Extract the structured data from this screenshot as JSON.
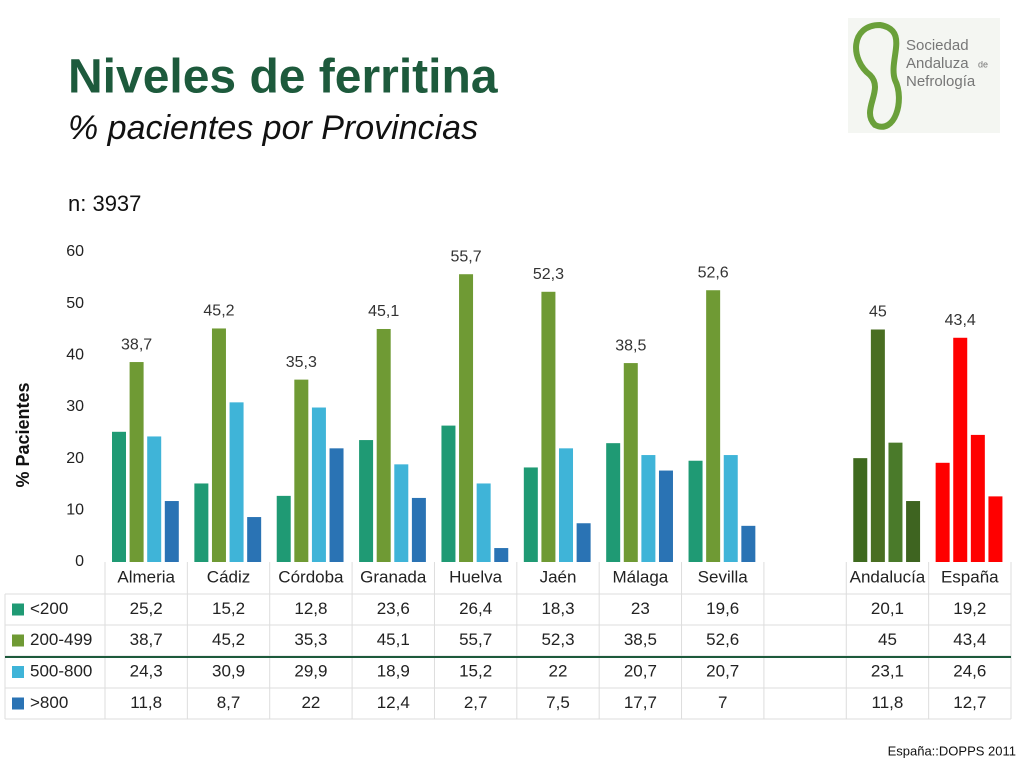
{
  "title": "Niveles de ferritina",
  "subtitle": "% pacientes por Provincias",
  "note": "n: 3937",
  "source": "España::DOPPS 2011",
  "logo": {
    "lines": [
      "Sociedad",
      "Andaluza",
      "Nefrología"
    ],
    "small": "de"
  },
  "chart_data": {
    "type": "bar",
    "ylabel": "% Pacientes",
    "categories": [
      "Almeria",
      "Cádiz",
      "Córdoba",
      "Granada",
      "Huelva",
      "Jaén",
      "Málaga",
      "Sevilla",
      null,
      "Andalucía",
      "España"
    ],
    "ylim": [
      0,
      60
    ],
    "yticks": [
      0,
      10,
      20,
      30,
      40,
      50,
      60
    ],
    "grid": false,
    "series": [
      {
        "name": "<200",
        "color": "#1f9a74",
        "colors": [
          "#1f9a74",
          "#1f9a74",
          "#1f9a74",
          "#1f9a74",
          "#1f9a74",
          "#1f9a74",
          "#1f9a74",
          "#1f9a74",
          null,
          "#3f6a1f",
          "#ff0000"
        ],
        "values": [
          25.2,
          15.2,
          12.8,
          23.6,
          26.4,
          18.3,
          23,
          19.6,
          null,
          20.1,
          19.2
        ],
        "value_labels": [
          "25,2",
          "15,2",
          "12,8",
          "23,6",
          "26,4",
          "18,3",
          "23",
          "19,6",
          null,
          "20,1",
          "19,2"
        ]
      },
      {
        "name": "200-499",
        "color": "#6f9a34",
        "colors": [
          "#6f9a34",
          "#6f9a34",
          "#6f9a34",
          "#6f9a34",
          "#6f9a34",
          "#6f9a34",
          "#6f9a34",
          "#6f9a34",
          null,
          "#4a6e22",
          "#ff0000"
        ],
        "values": [
          38.7,
          45.2,
          35.3,
          45.1,
          55.7,
          52.3,
          38.5,
          52.6,
          null,
          45,
          43.4
        ],
        "value_labels": [
          "38,7",
          "45,2",
          "35,3",
          "45,1",
          "55,7",
          "52,3",
          "38,5",
          "52,6",
          null,
          "45",
          "43,4"
        ]
      },
      {
        "name": "500-800",
        "color": "#3fb4d8",
        "colors": [
          "#3fb4d8",
          "#3fb4d8",
          "#3fb4d8",
          "#3fb4d8",
          "#3fb4d8",
          "#3fb4d8",
          "#3fb4d8",
          "#3fb4d8",
          null,
          "#4a7a2a",
          "#ff0000"
        ],
        "values": [
          24.3,
          30.9,
          29.9,
          18.9,
          15.2,
          22,
          20.7,
          20.7,
          null,
          23.1,
          24.6
        ],
        "value_labels": [
          "24,3",
          "30,9",
          "29,9",
          "18,9",
          "15,2",
          "22",
          "20,7",
          "20,7",
          null,
          "23,1",
          "24,6"
        ]
      },
      {
        "name": ">800",
        "color": "#2a73b4",
        "colors": [
          "#2a73b4",
          "#2a73b4",
          "#2a73b4",
          "#2a73b4",
          "#2a73b4",
          "#2a73b4",
          "#2a73b4",
          "#2a73b4",
          null,
          "#3e6420",
          "#ff0000"
        ],
        "values": [
          11.8,
          8.7,
          22,
          12.4,
          2.7,
          7.5,
          17.7,
          7,
          null,
          11.8,
          12.7
        ],
        "value_labels": [
          "11,8",
          "8,7",
          "22",
          "12,4",
          "2,7",
          "7,5",
          "17,7",
          "7",
          null,
          "11,8",
          "12,7"
        ]
      }
    ]
  }
}
